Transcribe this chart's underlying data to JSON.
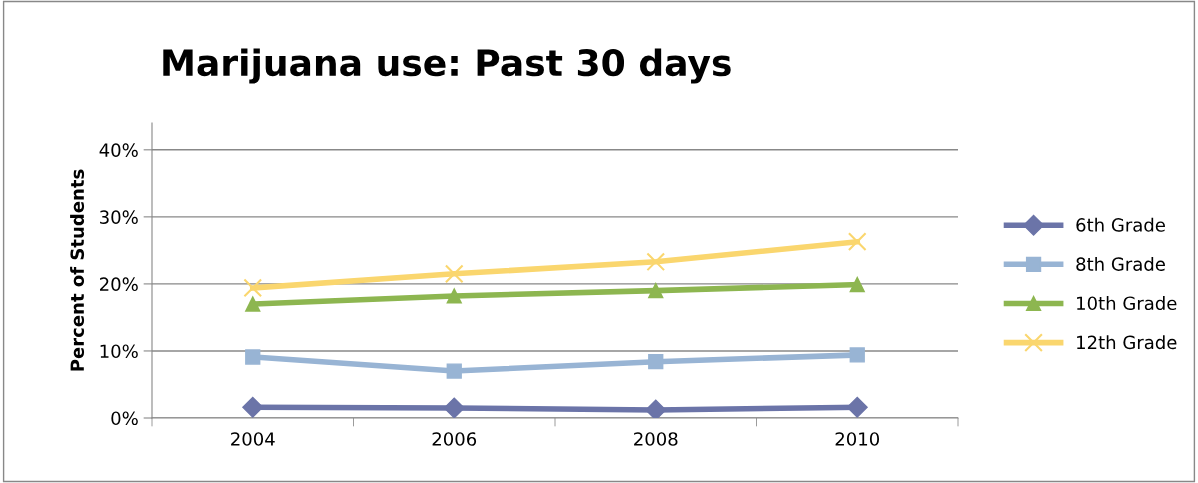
{
  "chart_data": {
    "type": "line",
    "title": "Marijuana use: Past 30 days",
    "ylabel": "Percent of Students",
    "categories": [
      "2004",
      "2006",
      "2008",
      "2010"
    ],
    "series": [
      {
        "name": "6th Grade",
        "color": "#6b74a8",
        "marker": "diamond",
        "values": [
          1.6,
          1.5,
          1.2,
          1.6
        ]
      },
      {
        "name": "8th Grade",
        "color": "#98b4d4",
        "marker": "square",
        "values": [
          9.1,
          7.0,
          8.4,
          9.4
        ]
      },
      {
        "name": "10th Grade",
        "color": "#8db650",
        "marker": "triangle",
        "values": [
          17.0,
          18.2,
          19.0,
          19.9
        ]
      },
      {
        "name": "12th Grade",
        "color": "#fad66e",
        "marker": "cross",
        "values": [
          19.4,
          21.5,
          23.3,
          26.3
        ]
      }
    ],
    "ylim": [
      0,
      44
    ],
    "yticks": [
      {
        "value": 0,
        "label": "0%"
      },
      {
        "value": 10,
        "label": "10%"
      },
      {
        "value": 20,
        "label": "20%"
      },
      {
        "value": 30,
        "label": "30%"
      },
      {
        "value": 40,
        "label": "40%"
      }
    ],
    "grid": "y",
    "legend": "right"
  }
}
